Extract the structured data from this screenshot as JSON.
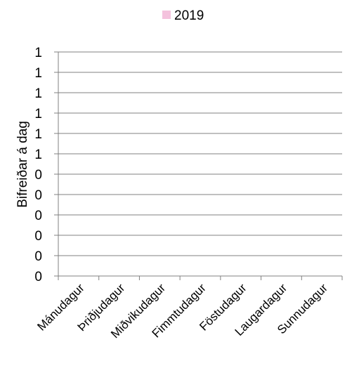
{
  "chart_data": {
    "type": "bar",
    "title": "",
    "xlabel": "",
    "ylabel": "Bifreiðar á dag",
    "categories": [
      "Mánudagur",
      "Þriðjudagur",
      "Miðvikudagur",
      "Fimmtudagur",
      "Föstudagur",
      "Laugardagur",
      "Sunnudagur"
    ],
    "series": [
      {
        "name": "2019",
        "values": [
          0,
          0,
          0,
          0,
          0,
          0,
          0
        ],
        "color": "#f4c2dd"
      }
    ],
    "y_tick_labels": [
      "0",
      "0",
      "0",
      "0",
      "0",
      "0",
      "1",
      "1",
      "1",
      "1",
      "1",
      "1"
    ],
    "ylim": [
      0,
      1.1
    ],
    "grid": true,
    "legend_position": "top",
    "gridline_color": "#808080",
    "axis_color": "#808080"
  }
}
